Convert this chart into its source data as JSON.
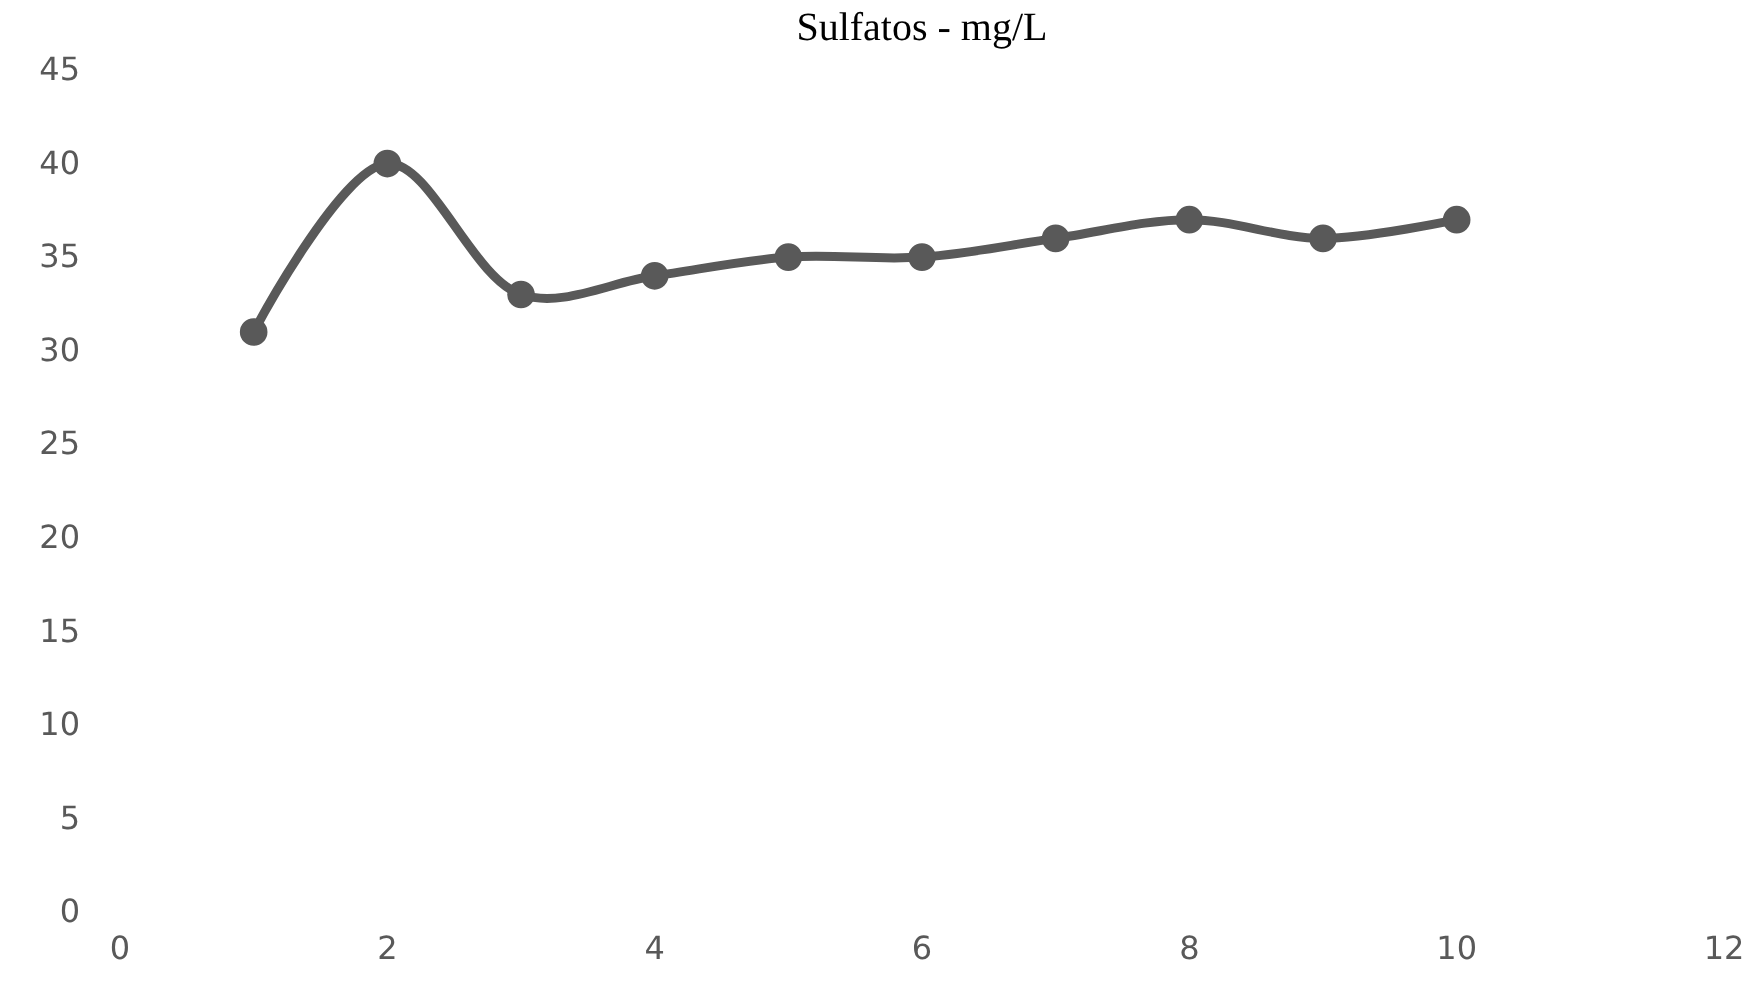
{
  "chart_data": {
    "type": "line",
    "title": "Sulfatos - mg/L",
    "x": [
      1,
      2,
      3,
      4,
      5,
      6,
      7,
      8,
      9,
      10
    ],
    "series": [
      {
        "color": "#595959",
        "values": [
          31,
          40,
          33,
          34,
          35,
          35,
          36,
          37,
          36,
          37
        ]
      }
    ],
    "xlim": [
      0,
      12
    ],
    "xticks": [
      0,
      2,
      4,
      6,
      8,
      10,
      12
    ],
    "ylim": [
      0,
      45
    ],
    "yticks": [
      0,
      5,
      10,
      15,
      20,
      25,
      30,
      35,
      40,
      45
    ],
    "marker": "circle",
    "line_style": "solid"
  }
}
